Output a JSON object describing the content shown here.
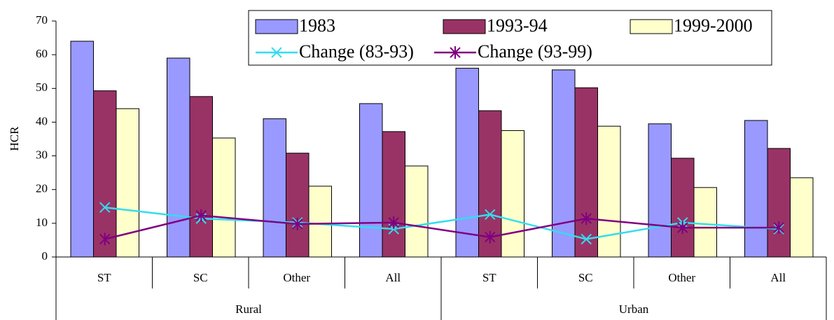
{
  "chart_data": {
    "type": "bar",
    "y_label": "HCR",
    "categories": [
      "ST",
      "SC",
      "Other",
      "All",
      "ST",
      "SC",
      "Other",
      "All"
    ],
    "groups": [
      "Rural",
      "Urban"
    ],
    "series": [
      {
        "name": "1983",
        "type": "bar",
        "color": "#9999ff",
        "values": [
          64,
          59,
          41,
          45.5,
          56,
          55.5,
          39.5,
          40.5
        ]
      },
      {
        "name": "1993-94",
        "type": "bar",
        "color": "#993366",
        "values": [
          49.3,
          47.6,
          30.8,
          37.2,
          43.4,
          50.2,
          29.3,
          32.2
        ]
      },
      {
        "name": "1999-2000",
        "type": "bar",
        "color": "#ffffcc",
        "values": [
          44,
          35.3,
          21,
          27,
          37.5,
          38.8,
          20.6,
          23.5
        ]
      },
      {
        "name": "Change (83-93)",
        "type": "line",
        "marker": "x",
        "color": "#33ddee",
        "values": [
          14.7,
          11.4,
          10.2,
          8.3,
          12.6,
          5.3,
          10.2,
          8.3
        ]
      },
      {
        "name": "Change (93-99)",
        "type": "line",
        "marker": "star",
        "color": "#800080",
        "values": [
          5.3,
          12.3,
          9.8,
          10.2,
          5.9,
          11.4,
          8.7,
          8.7
        ]
      }
    ],
    "ylim": [
      0,
      70
    ],
    "yticks": [
      0,
      10,
      20,
      30,
      40,
      50,
      60,
      70
    ],
    "grid": false,
    "legend": "top-right"
  }
}
